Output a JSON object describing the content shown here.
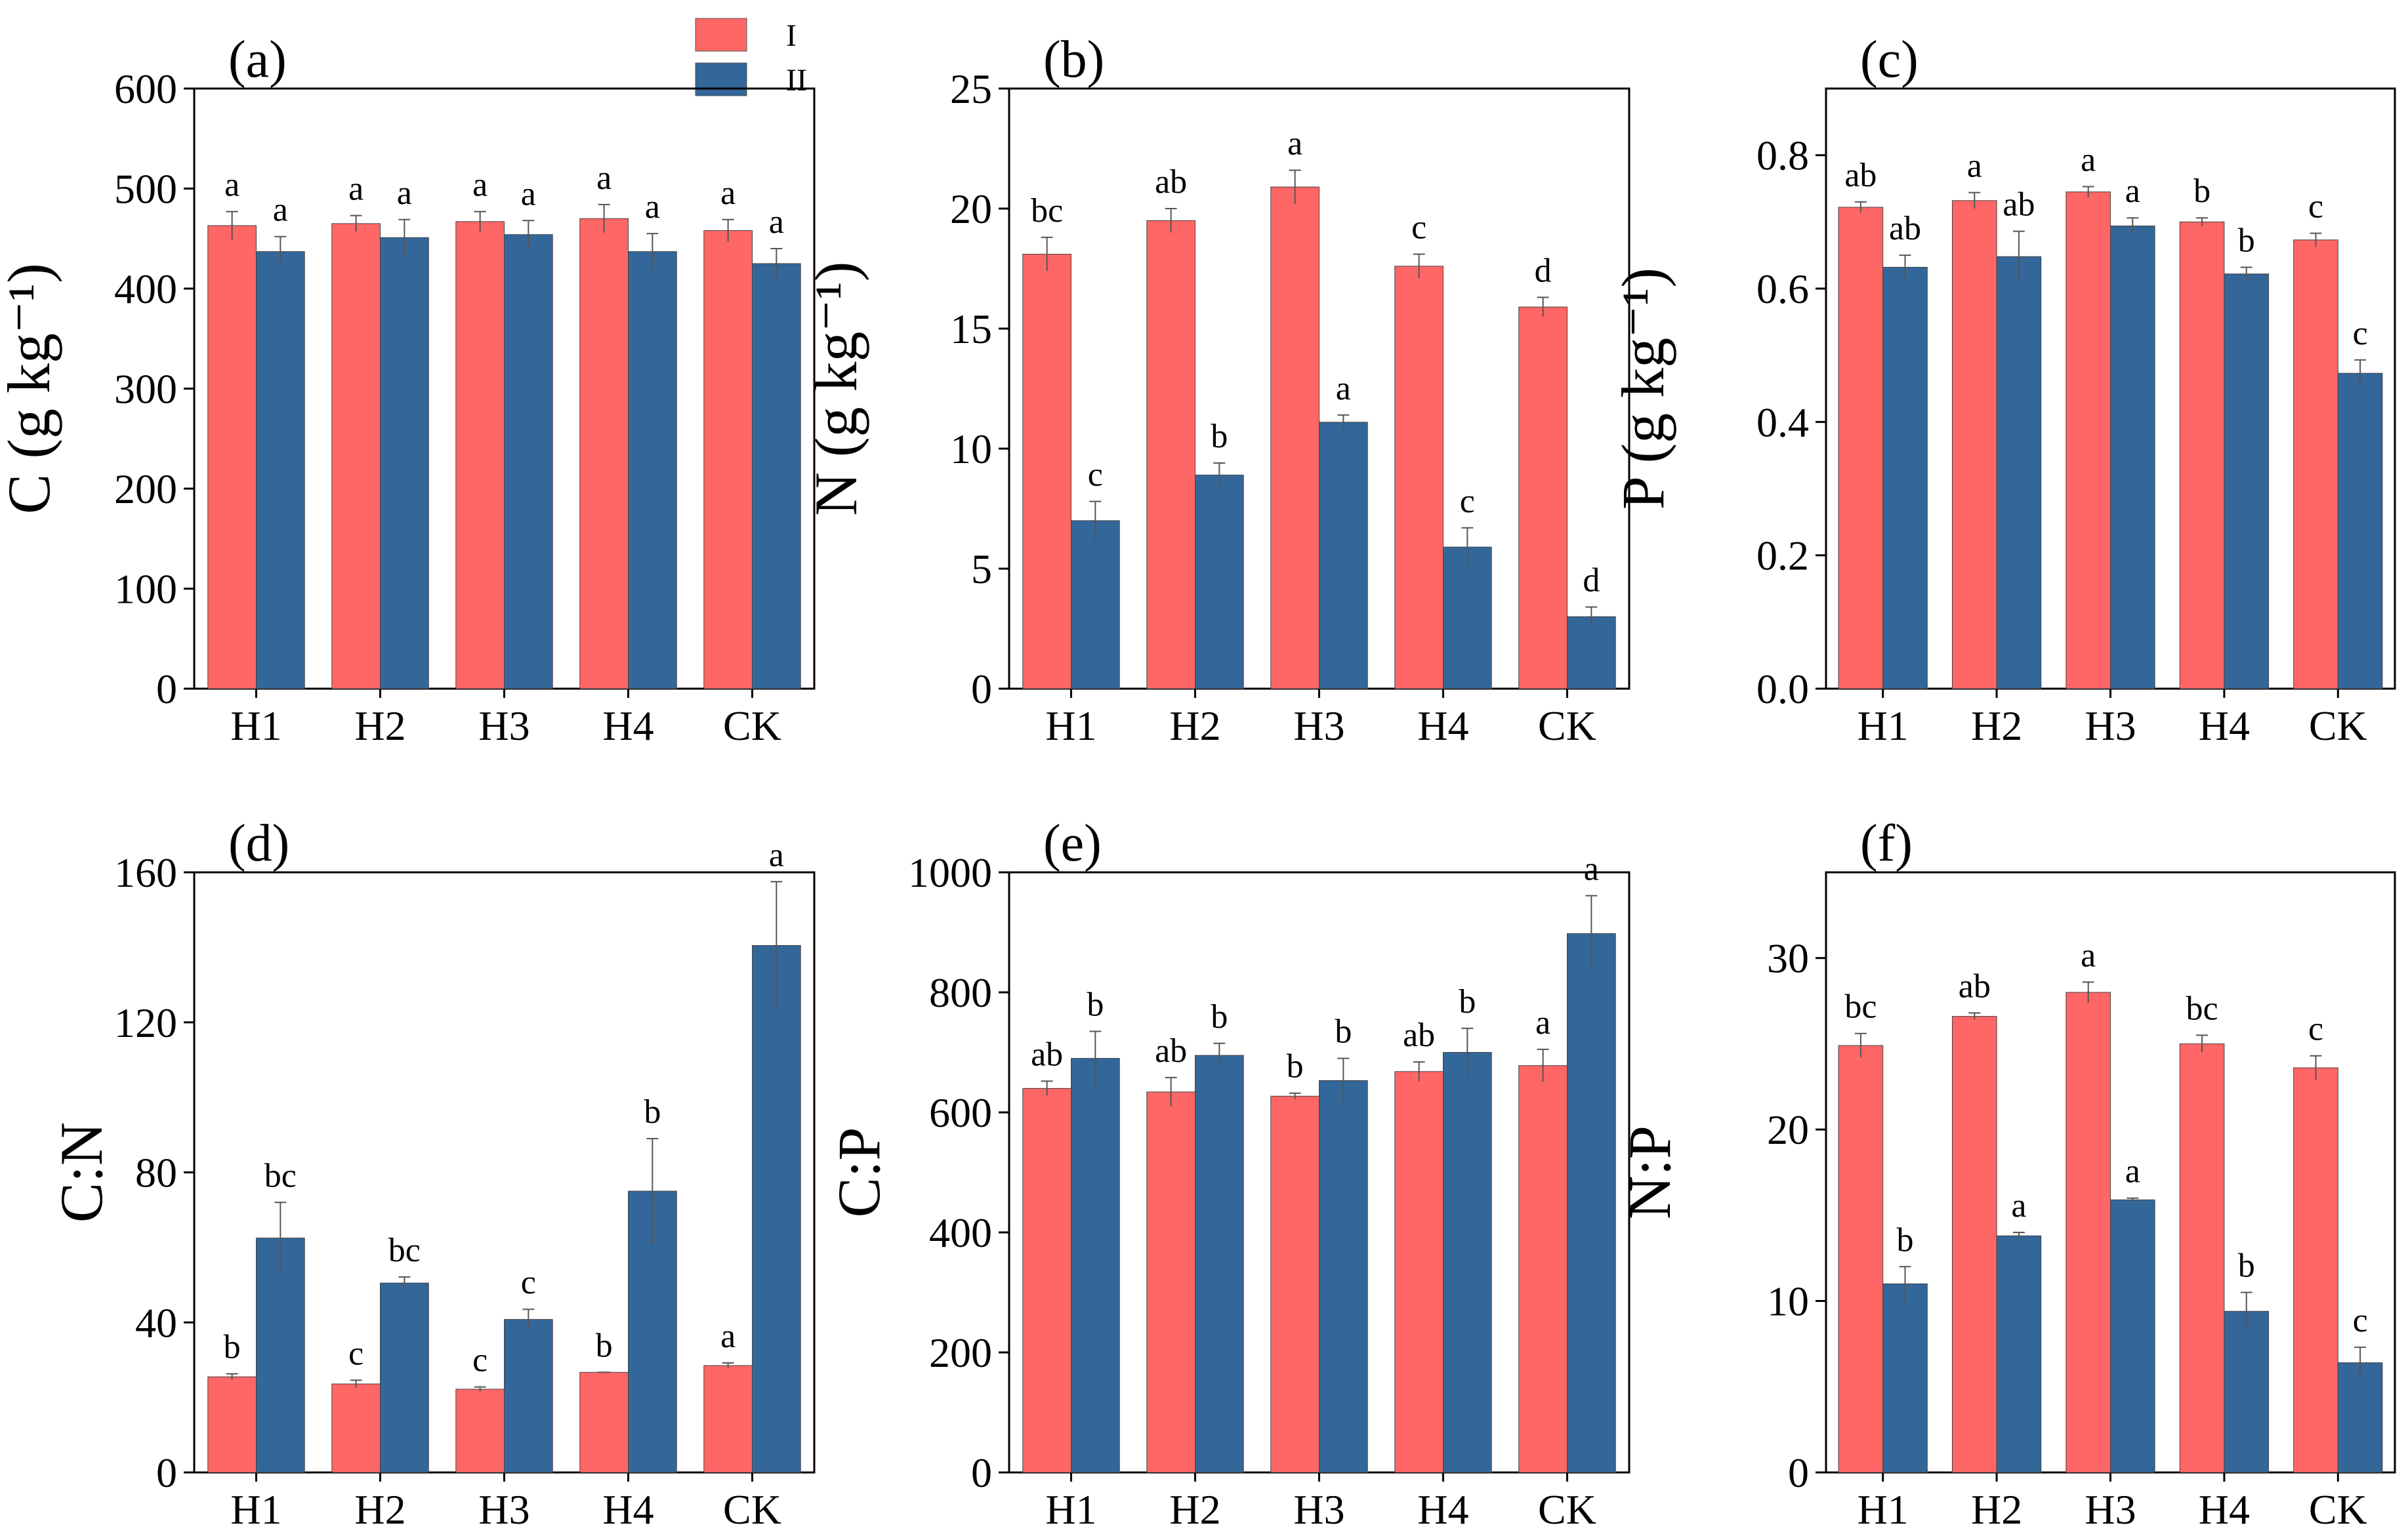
{
  "legend": {
    "series": [
      {
        "name": "I",
        "color": "#FF6666"
      },
      {
        "name": "II",
        "color": "#336699"
      }
    ]
  },
  "chart_data": [
    {
      "type": "bar",
      "panel_label": "(a)",
      "title": "",
      "xlabel": "",
      "ylabel": "C (g kg⁻¹)",
      "ylim": [
        0,
        600
      ],
      "yticks": [
        "0",
        "100",
        "200",
        "300",
        "400",
        "500",
        "600"
      ],
      "ytick_values": [
        0,
        100,
        200,
        300,
        400,
        500,
        600
      ],
      "categories": [
        "H1",
        "H2",
        "H3",
        "H4",
        "CK"
      ],
      "series": [
        {
          "name": "I",
          "values": [
            463,
            465,
            467,
            470,
            458
          ],
          "errors": [
            14,
            8,
            10,
            14,
            11
          ],
          "labels": [
            "a",
            "a",
            "a",
            "a",
            "a"
          ]
        },
        {
          "name": "II",
          "values": [
            437,
            451,
            454,
            437,
            425
          ],
          "errors": [
            15,
            18,
            14,
            18,
            15
          ],
          "labels": [
            "a",
            "a",
            "a",
            "a",
            "a"
          ]
        }
      ]
    },
    {
      "type": "bar",
      "panel_label": "(b)",
      "title": "",
      "xlabel": "",
      "ylabel": "N (g kg⁻¹)",
      "ylim": [
        0,
        25
      ],
      "yticks": [
        "0",
        "5",
        "10",
        "15",
        "20",
        "25"
      ],
      "ytick_values": [
        0,
        5,
        10,
        15,
        20,
        25
      ],
      "categories": [
        "H1",
        "H2",
        "H3",
        "H4",
        "CK"
      ],
      "series": [
        {
          "name": "I",
          "values": [
            18.1,
            19.5,
            20.9,
            17.6,
            15.9
          ],
          "errors": [
            0.7,
            0.5,
            0.7,
            0.5,
            0.4
          ],
          "labels": [
            "bc",
            "ab",
            "a",
            "c",
            "d"
          ]
        },
        {
          "name": "II",
          "values": [
            7.0,
            8.9,
            11.1,
            5.9,
            3.0
          ],
          "errors": [
            0.8,
            0.5,
            0.3,
            0.8,
            0.4
          ],
          "labels": [
            "c",
            "b",
            "a",
            "c",
            "d"
          ]
        }
      ]
    },
    {
      "type": "bar",
      "panel_label": "(c)",
      "title": "",
      "xlabel": "",
      "ylabel": "P (g kg⁻¹)",
      "ylim": [
        0,
        0.9
      ],
      "yticks": [
        "0.0",
        "0.2",
        "0.4",
        "0.6",
        "0.8"
      ],
      "ytick_values": [
        0,
        0.2,
        0.4,
        0.6,
        0.8
      ],
      "categories": [
        "H1",
        "H2",
        "H3",
        "H4",
        "CK"
      ],
      "series": [
        {
          "name": "I",
          "values": [
            0.722,
            0.732,
            0.745,
            0.7,
            0.673
          ],
          "errors": [
            0.008,
            0.012,
            0.008,
            0.006,
            0.01
          ],
          "labels": [
            "ab",
            "a",
            "a",
            "b",
            "c"
          ]
        },
        {
          "name": "II",
          "values": [
            0.632,
            0.648,
            0.694,
            0.622,
            0.473
          ],
          "errors": [
            0.018,
            0.038,
            0.012,
            0.01,
            0.02
          ],
          "labels": [
            "ab",
            "ab",
            "a",
            "b",
            "c"
          ]
        }
      ]
    },
    {
      "type": "bar",
      "panel_label": "(d)",
      "title": "",
      "xlabel": "",
      "ylabel": "C:N",
      "ylim": [
        0,
        160
      ],
      "yticks": [
        "0",
        "40",
        "80",
        "120",
        "160"
      ],
      "ytick_values": [
        0,
        40,
        80,
        120,
        160
      ],
      "categories": [
        "H1",
        "H2",
        "H3",
        "H4",
        "CK"
      ],
      "series": [
        {
          "name": "I",
          "values": [
            25.5,
            23.6,
            22.2,
            26.7,
            28.5
          ],
          "errors": [
            0.8,
            1.0,
            0.6,
            0.0,
            0.7
          ],
          "labels": [
            "b",
            "c",
            "c",
            "b",
            "a"
          ]
        },
        {
          "name": "II",
          "values": [
            62.5,
            50.5,
            40.8,
            75.0,
            140.5
          ],
          "errors": [
            9.5,
            1.6,
            2.7,
            14.0,
            17.0
          ],
          "labels": [
            "bc",
            "bc",
            "c",
            "b",
            "a"
          ]
        }
      ]
    },
    {
      "type": "bar",
      "panel_label": "(e)",
      "title": "",
      "xlabel": "",
      "ylabel": "C:P",
      "ylim": [
        0,
        1000
      ],
      "yticks": [
        "0",
        "200",
        "400",
        "600",
        "800",
        "1000"
      ],
      "ytick_values": [
        0,
        200,
        400,
        600,
        800,
        1000
      ],
      "categories": [
        "H1",
        "H2",
        "H3",
        "H4",
        "CK"
      ],
      "series": [
        {
          "name": "I",
          "values": [
            640,
            634,
            627,
            668,
            678
          ],
          "errors": [
            12,
            24,
            5,
            16,
            27
          ],
          "labels": [
            "ab",
            "ab",
            "b",
            "ab",
            "a"
          ]
        },
        {
          "name": "II",
          "values": [
            690,
            695,
            653,
            700,
            898
          ],
          "errors": [
            45,
            20,
            37,
            40,
            63
          ],
          "labels": [
            "b",
            "b",
            "b",
            "b",
            "a"
          ]
        }
      ]
    },
    {
      "type": "bar",
      "panel_label": "(f)",
      "title": "",
      "xlabel": "",
      "ylabel": "N:P",
      "ylim": [
        0,
        35
      ],
      "yticks": [
        "0",
        "10",
        "20",
        "30"
      ],
      "ytick_values": [
        0,
        10,
        20,
        30
      ],
      "categories": [
        "H1",
        "H2",
        "H3",
        "H4",
        "CK"
      ],
      "series": [
        {
          "name": "I",
          "values": [
            24.9,
            26.6,
            28.0,
            25.0,
            23.6
          ],
          "errors": [
            0.7,
            0.2,
            0.6,
            0.5,
            0.7
          ],
          "labels": [
            "bc",
            "ab",
            "a",
            "bc",
            "c"
          ]
        },
        {
          "name": "II",
          "values": [
            11.0,
            13.8,
            15.9,
            9.4,
            6.4
          ],
          "errors": [
            1.0,
            0.2,
            0.1,
            1.1,
            0.9
          ],
          "labels": [
            "b",
            "a",
            "a",
            "b",
            "c"
          ]
        }
      ]
    }
  ]
}
